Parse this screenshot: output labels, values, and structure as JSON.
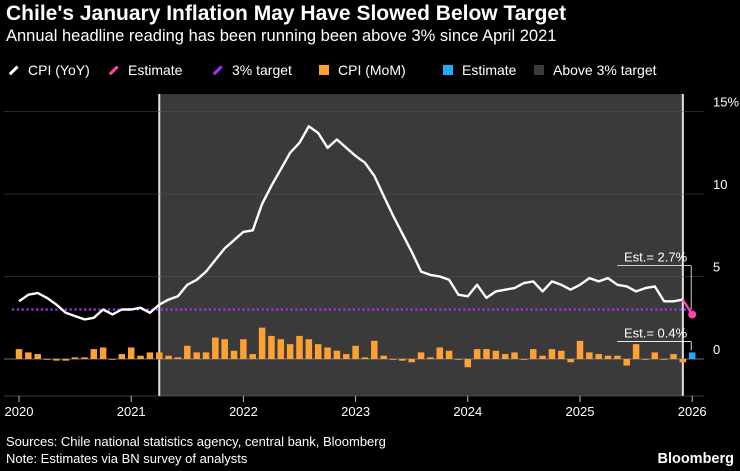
{
  "title": "Chile's January Inflation May Have Slowed Below Target",
  "subtitle": "Annual headline reading has been running been above 3% since April 2021",
  "legend": [
    {
      "label": "CPI (YoY)",
      "color": "#ffffff",
      "kind": "line"
    },
    {
      "label": "Estimate",
      "color": "#ff40b0",
      "kind": "line"
    },
    {
      "label": "3% target",
      "color": "#a033ff",
      "kind": "line"
    },
    {
      "label": "CPI (MoM)",
      "color": "#ffa033",
      "kind": "box"
    },
    {
      "label": "Estimate",
      "color": "#22aaff",
      "kind": "box"
    },
    {
      "label": "Above 3% target",
      "color": "#3a3a3a",
      "kind": "box"
    }
  ],
  "annotations": {
    "yoy_estimate": "Est.= 2.7%",
    "mom_estimate": "Est.= 0.4%"
  },
  "footer": {
    "sources": "Sources: Chile national statistics agency, central bank, Bloomberg",
    "note": "Note: Estimates via BN survey of analysts",
    "brand": "Bloomberg"
  },
  "chart_data": {
    "type": "line",
    "title": "Chile's January Inflation May Have Slowed Below Target",
    "x_start": "2020-01",
    "x_ticks": [
      "2020",
      "2021",
      "2022",
      "2023",
      "2024",
      "2025",
      "2026"
    ],
    "y_ticks": [
      "0",
      "5",
      "10",
      "15%"
    ],
    "ylim": [
      -2,
      15.5
    ],
    "target": 3.0,
    "above_target_span": [
      "2021-04",
      "2025-12"
    ],
    "cpi_yoy": [
      3.5,
      3.9,
      4.0,
      3.7,
      3.3,
      2.8,
      2.6,
      2.4,
      2.5,
      3.0,
      2.7,
      3.0,
      3.0,
      3.1,
      2.8,
      3.3,
      3.6,
      3.8,
      4.5,
      4.8,
      5.3,
      6.0,
      6.7,
      7.2,
      7.7,
      7.8,
      9.4,
      10.5,
      11.5,
      12.5,
      13.1,
      14.1,
      13.7,
      12.8,
      13.3,
      12.8,
      12.3,
      11.9,
      11.1,
      9.9,
      8.7,
      7.6,
      6.5,
      5.3,
      5.1,
      5.0,
      4.8,
      3.9,
      3.8,
      4.5,
      3.7,
      4.1,
      4.2,
      4.3,
      4.6,
      4.7,
      4.1,
      4.7,
      4.5,
      4.2,
      4.5,
      4.9,
      4.7,
      4.9,
      4.5,
      4.4,
      4.1,
      4.3,
      4.4,
      3.5,
      3.5,
      3.6
    ],
    "cpi_yoy_estimate": {
      "date": "2026-01",
      "value": 2.7
    },
    "cpi_mom": [
      0.6,
      0.4,
      0.3,
      0.0,
      -0.1,
      -0.1,
      0.1,
      0.1,
      0.6,
      0.7,
      0.0,
      0.3,
      0.7,
      0.2,
      0.4,
      0.4,
      0.2,
      0.1,
      0.8,
      0.4,
      0.4,
      1.3,
      1.2,
      0.5,
      1.2,
      0.3,
      1.9,
      1.4,
      1.2,
      0.9,
      1.4,
      1.2,
      0.9,
      0.7,
      0.5,
      0.3,
      0.8,
      0.1,
      1.1,
      0.2,
      0.0,
      -0.1,
      -0.2,
      0.4,
      0.1,
      0.7,
      0.5,
      0.0,
      -0.5,
      0.6,
      0.6,
      0.5,
      0.3,
      0.4,
      0.0,
      0.6,
      0.2,
      0.6,
      0.5,
      -0.2,
      1.1,
      0.4,
      0.3,
      0.2,
      0.2,
      -0.4,
      0.9,
      0.0,
      0.4,
      0.0,
      0.3,
      -0.2
    ],
    "cpi_mom_estimate": {
      "date": "2026-01",
      "value": 0.4
    }
  }
}
